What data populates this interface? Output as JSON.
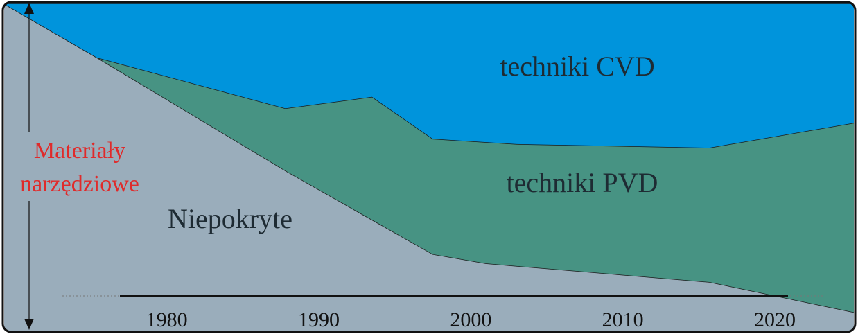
{
  "chart_data": {
    "type": "stacked_area",
    "y_label_lines": [
      "Materiały",
      "narzędziowe"
    ],
    "x": [
      1970,
      1975.4,
      1987.8,
      1993.5,
      1997.5,
      2001,
      2003,
      2015.7,
      2025
    ],
    "xlim": [
      1969.3,
      2025.2
    ],
    "xticks": [
      1980,
      1990,
      2000,
      2010,
      2020
    ],
    "ylim": [
      0,
      100
    ],
    "series": [
      {
        "name": "Niepokryte",
        "color": "#9aadbb",
        "values": [
          98,
          83.5,
          49,
          34,
          23.5,
          20.7,
          19.9,
          15,
          6
        ]
      },
      {
        "name": "techniki PVD",
        "color": "#479383",
        "values": [
          0,
          0,
          19,
          37.5,
          35.2,
          37,
          37.2,
          41,
          57.4
        ]
      },
      {
        "name": "techniki CVD",
        "color": "#0094dc",
        "values": [
          2,
          16.5,
          32,
          28.5,
          41.3,
          42.3,
          42.9,
          44,
          36.6
        ]
      }
    ]
  }
}
